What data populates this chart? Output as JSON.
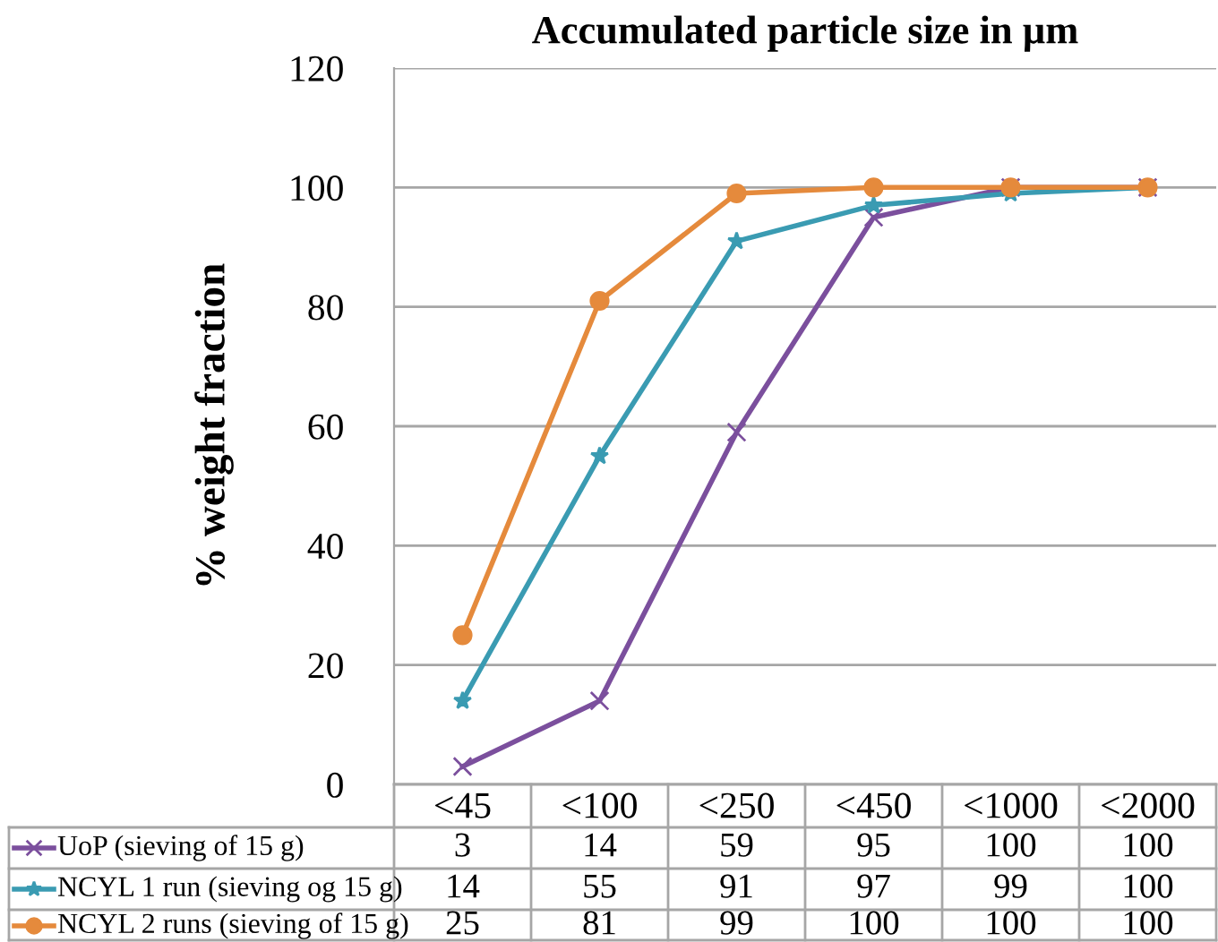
{
  "chart_data": {
    "type": "line",
    "title": "Accumulated particle size in µm",
    "ylabel": "% weight fraction",
    "categories": [
      "<45",
      "<100",
      "<250",
      "<450",
      "<1000",
      "<2000"
    ],
    "series": [
      {
        "name": "UoP (sieving of 15 g)",
        "color": "#7b4f9d",
        "marker": "cross",
        "values": [
          3,
          14,
          59,
          95,
          100,
          100
        ]
      },
      {
        "name": "NCYL 1 run (sieving og 15 g)",
        "color": "#3a9bb2",
        "marker": "star",
        "values": [
          14,
          55,
          91,
          97,
          99,
          100
        ]
      },
      {
        "name": "NCYL 2 runs (sieving of 15 g)",
        "color": "#e58a3c",
        "marker": "circle",
        "values": [
          25,
          81,
          99,
          100,
          100,
          100
        ]
      }
    ],
    "ylim": [
      0,
      120
    ],
    "yticks": [
      0,
      20,
      40,
      60,
      80,
      100,
      120
    ],
    "grid": "y",
    "legend": "bottom left",
    "data_labels": true,
    "line_style": "solid"
  }
}
